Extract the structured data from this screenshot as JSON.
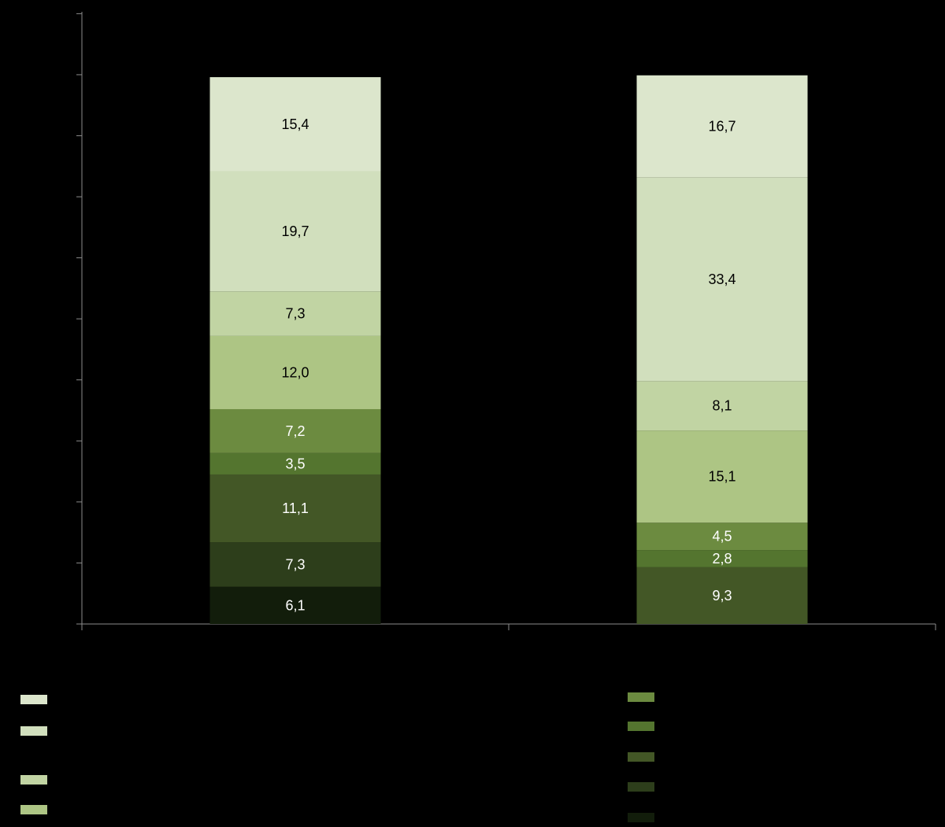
{
  "chart_data": {
    "type": "bar",
    "stacked": true,
    "title": "",
    "xlabel": "",
    "ylabel": "",
    "ylim": [
      0,
      100
    ],
    "y_ticks": [
      "",
      "",
      "",
      "",
      "",
      "",
      "",
      "",
      "",
      "",
      ""
    ],
    "categories": [
      "",
      ""
    ],
    "label_font": {
      "dark": "#ffffff",
      "light": "#000000"
    },
    "series": [
      {
        "color": "#121d0b",
        "text_color": "#ffffff",
        "values": [
          6.1,
          null
        ]
      },
      {
        "color": "#2d3e1b",
        "text_color": "#ffffff",
        "values": [
          7.3,
          null
        ]
      },
      {
        "color": "#435726",
        "text_color": "#ffffff",
        "values": [
          11.1,
          9.3
        ]
      },
      {
        "color": "#54752f",
        "text_color": "#ffffff",
        "values": [
          3.5,
          2.8
        ]
      },
      {
        "color": "#6c8b40",
        "text_color": "#ffffff",
        "values": [
          7.2,
          4.5
        ]
      },
      {
        "color": "#adc584",
        "text_color": "#000000",
        "values": [
          12.0,
          15.1
        ]
      },
      {
        "color": "#c1d4a3",
        "text_color": "#000000",
        "values": [
          7.3,
          8.1
        ]
      },
      {
        "color": "#d1dfbd",
        "text_color": "#000000",
        "values": [
          19.7,
          33.4
        ]
      },
      {
        "color": "#dce6cc",
        "text_color": "#000000",
        "values": [
          15.4,
          16.7
        ]
      }
    ],
    "value_labels": [
      [
        "6,1",
        "7,3",
        "11,1",
        "3,5",
        "7,2",
        "12,0",
        "7,3",
        "19,7",
        "15,4"
      ],
      [
        "",
        "",
        "9,3",
        "2,8",
        "4,5",
        "15,1",
        "8,1",
        "33,4",
        "16,7"
      ]
    ],
    "legend": [
      {
        "label": "",
        "color": "#dce6cc"
      },
      {
        "label": "",
        "color": "#d1dfbd"
      },
      {
        "label": "",
        "color": "#c1d4a3"
      },
      {
        "label": "",
        "color": "#adc584"
      },
      {
        "label": "",
        "color": "#6c8b40"
      },
      {
        "label": "",
        "color": "#54752f"
      },
      {
        "label": "",
        "color": "#435726"
      },
      {
        "label": "",
        "color": "#2d3e1b"
      },
      {
        "label": "",
        "color": "#121d0b"
      }
    ]
  }
}
